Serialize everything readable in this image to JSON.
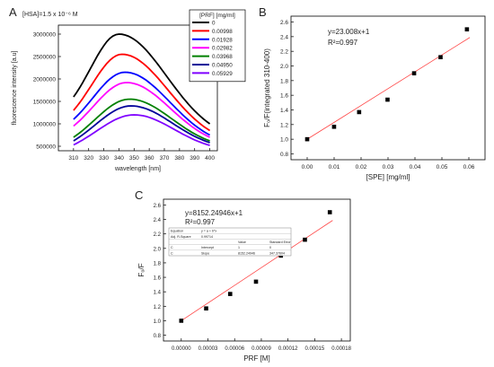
{
  "panels": {
    "a": {
      "label": "A"
    },
    "b": {
      "label": "B"
    },
    "c": {
      "label": "C"
    }
  },
  "chart_data": [
    {
      "type": "line",
      "panel": "A",
      "annotation": "[HSA]=1.5 x 10⁻⁶ M",
      "xlabel": "wavelength [nm]",
      "ylabel": "fluorescence intensity [a.u]",
      "legend_title": "[PRF] [mg/ml]",
      "legend_position": "top-right",
      "xlim": [
        300,
        405
      ],
      "ylim": [
        400000,
        3200000
      ],
      "x_ticks": [
        310,
        320,
        330,
        340,
        350,
        360,
        370,
        380,
        390,
        400
      ],
      "y_ticks": [
        500000,
        1000000,
        1500000,
        2000000,
        2500000,
        3000000
      ],
      "series": [
        {
          "name": "0",
          "color": "#000000",
          "peak_x": 340,
          "y0": 1600000,
          "peak": 3000000,
          "y_end": 1000000
        },
        {
          "name": "0.00998",
          "color": "#ff0000",
          "peak_x": 342,
          "y0": 1300000,
          "peak": 2550000,
          "y_end": 850000
        },
        {
          "name": "0.01928",
          "color": "#0000ff",
          "peak_x": 344,
          "y0": 1100000,
          "peak": 2150000,
          "y_end": 750000
        },
        {
          "name": "0.02982",
          "color": "#ff00ff",
          "peak_x": 345,
          "y0": 950000,
          "peak": 1920000,
          "y_end": 700000
        },
        {
          "name": "0.03968",
          "color": "#008000",
          "peak_x": 347,
          "y0": 700000,
          "peak": 1550000,
          "y_end": 620000
        },
        {
          "name": "0.04950",
          "color": "#000099",
          "peak_x": 348,
          "y0": 620000,
          "peak": 1400000,
          "y_end": 580000
        },
        {
          "name": "0.05929",
          "color": "#7f00ff",
          "peak_x": 350,
          "y0": 530000,
          "peak": 1200000,
          "y_end": 520000
        }
      ]
    },
    {
      "type": "scatter",
      "panel": "B",
      "annotation_eq": "y=23.008x+1",
      "annotation_r2": "R²=0.997",
      "xlabel": "[SPE] [mg/ml]",
      "ylabel": "F₀/F(integrated 310-400)",
      "xlim": [
        -0.006,
        0.066
      ],
      "ylim": [
        0.72,
        2.68
      ],
      "x_ticks": [
        "0.00",
        "0.01",
        "0.02",
        "0.03",
        "0.04",
        "0.05",
        "0.06"
      ],
      "y_ticks": [
        "0.8",
        "1.0",
        "1.2",
        "1.4",
        "1.6",
        "1.8",
        "2.0",
        "2.2",
        "2.4",
        "2.6"
      ],
      "x": [
        0.0,
        0.00998,
        0.01928,
        0.02982,
        0.03968,
        0.0495,
        0.05929
      ],
      "y": [
        1.0,
        1.17,
        1.37,
        1.54,
        1.9,
        2.12,
        2.5
      ],
      "fit": {
        "slope": 23.008,
        "intercept": 1,
        "color": "#ff4444"
      }
    },
    {
      "type": "scatter",
      "panel": "C",
      "annotation_eq": "y=8152.24946x+1",
      "annotation_r2": "R²=0.997",
      "xlabel": "PRF [M]",
      "ylabel": "F₀/F",
      "xlim": [
        -2e-05,
        0.00019
      ],
      "ylim": [
        0.72,
        2.68
      ],
      "x_ticks": [
        "0.00000",
        "0.00003",
        "0.00006",
        "0.00009",
        "0.00012",
        "0.00015",
        "0.00018"
      ],
      "y_ticks": [
        "0.8",
        "1.0",
        "1.2",
        "1.4",
        "1.6",
        "1.8",
        "2.0",
        "2.2",
        "2.4",
        "2.6"
      ],
      "x": [
        0.0,
        2.8e-05,
        5.5e-05,
        8.4e-05,
        0.000112,
        0.000139,
        0.000167
      ],
      "y": [
        1.0,
        1.17,
        1.37,
        1.54,
        1.9,
        2.12,
        2.5
      ],
      "fit": {
        "slope": 8152.24946,
        "intercept": 1,
        "color": "#ff4444"
      },
      "table": {
        "rows": [
          [
            "Equation",
            "y = a + b*x",
            "",
            ""
          ],
          [
            "Adj. R-Square",
            "0.99714",
            "",
            ""
          ],
          [
            "",
            "",
            "Value",
            "Standard Error"
          ],
          [
            "C",
            "Intercept",
            "1",
            "0"
          ],
          [
            "C",
            "Slope",
            "8152.24946",
            "347.37604"
          ]
        ]
      }
    }
  ]
}
